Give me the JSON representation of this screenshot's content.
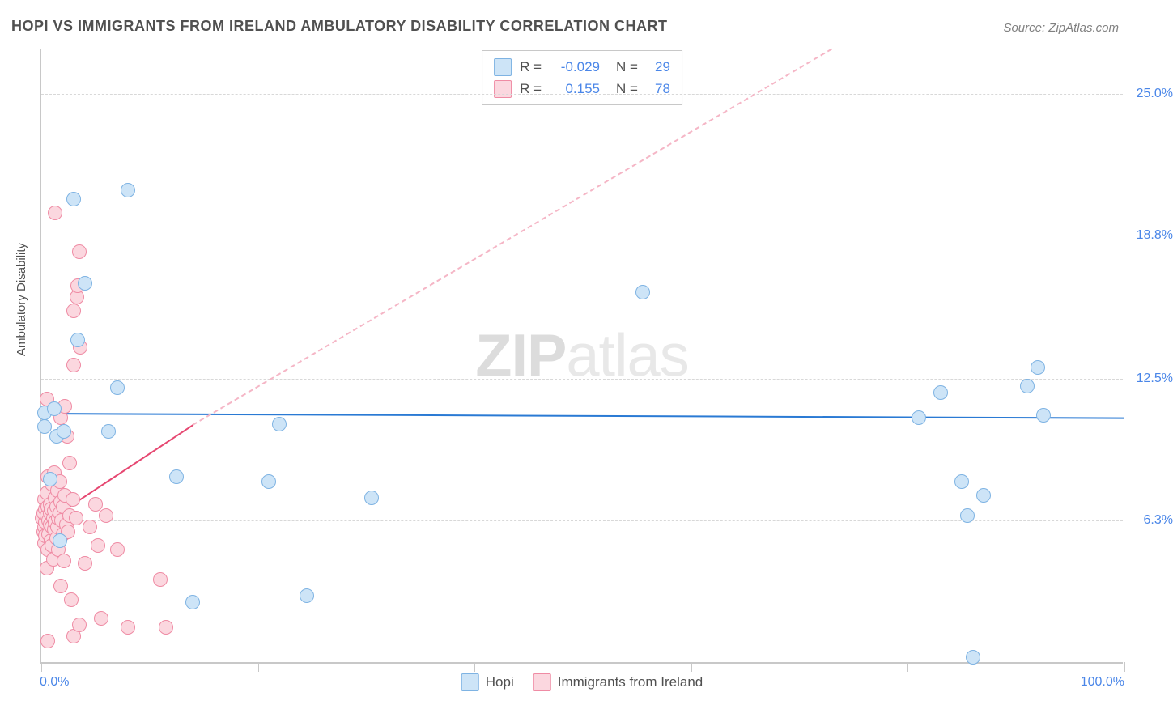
{
  "title": "HOPI VS IMMIGRANTS FROM IRELAND AMBULATORY DISABILITY CORRELATION CHART",
  "source": "Source: ZipAtlas.com",
  "y_axis_title": "Ambulatory Disability",
  "watermark_bold": "ZIP",
  "watermark_light": "atlas",
  "chart": {
    "type": "scatter",
    "xlim": [
      0,
      100
    ],
    "ylim": [
      0,
      27
    ],
    "x_tick_positions": [
      0,
      20,
      40,
      60,
      80,
      100
    ],
    "x_label_min": "0.0%",
    "x_label_max": "100.0%",
    "y_gridlines": [
      {
        "value": 6.3,
        "label": "6.3%"
      },
      {
        "value": 12.5,
        "label": "12.5%"
      },
      {
        "value": 18.8,
        "label": "18.8%"
      },
      {
        "value": 25.0,
        "label": "25.0%"
      }
    ],
    "background_color": "#ffffff",
    "grid_color": "#d8d8d8",
    "axis_color": "#c8c8c8",
    "marker_radius": 9,
    "series": [
      {
        "name": "Hopi",
        "fill": "#cde4f7",
        "stroke": "#7eb3e3",
        "r_value": "-0.029",
        "n_value": "29",
        "trend": {
          "x1": 0,
          "y1": 11.0,
          "x2": 100,
          "y2": 10.8,
          "solid_color": "#2a7ad4"
        },
        "points": [
          [
            0.3,
            10.4
          ],
          [
            0.3,
            11.0
          ],
          [
            0.8,
            8.1
          ],
          [
            1.2,
            11.2
          ],
          [
            1.4,
            10.0
          ],
          [
            1.7,
            5.4
          ],
          [
            2.1,
            10.2
          ],
          [
            3.0,
            20.4
          ],
          [
            3.4,
            14.2
          ],
          [
            4.0,
            16.7
          ],
          [
            6.2,
            10.2
          ],
          [
            7.0,
            12.1
          ],
          [
            8.0,
            20.8
          ],
          [
            12.5,
            8.2
          ],
          [
            14.0,
            2.7
          ],
          [
            21.0,
            8.0
          ],
          [
            22.0,
            10.5
          ],
          [
            24.5,
            3.0
          ],
          [
            30.5,
            7.3
          ],
          [
            55.5,
            16.3
          ],
          [
            81.0,
            10.8
          ],
          [
            83.0,
            11.9
          ],
          [
            85.0,
            8.0
          ],
          [
            85.5,
            6.5
          ],
          [
            87.0,
            7.4
          ],
          [
            91.0,
            12.2
          ],
          [
            92.0,
            13.0
          ],
          [
            92.5,
            10.9
          ],
          [
            86.0,
            0.3
          ]
        ]
      },
      {
        "name": "Immigrants from Ireland",
        "fill": "#fbd7df",
        "stroke": "#ef8ba4",
        "r_value": "0.155",
        "n_value": "78",
        "trend": {
          "solid": {
            "x1": 0,
            "y1": 6.1,
            "x2": 14,
            "y2": 10.5,
            "color": "#e64771"
          },
          "dash": {
            "x1": 14,
            "y1": 10.5,
            "x2": 73,
            "y2": 27,
            "color": "#f5b6c6"
          }
        },
        "points": [
          [
            0.1,
            6.4
          ],
          [
            0.2,
            5.8
          ],
          [
            0.2,
            6.6
          ],
          [
            0.3,
            6.0
          ],
          [
            0.3,
            5.3
          ],
          [
            0.3,
            7.2
          ],
          [
            0.4,
            6.8
          ],
          [
            0.4,
            5.6
          ],
          [
            0.4,
            6.2
          ],
          [
            0.5,
            4.2
          ],
          [
            0.5,
            7.5
          ],
          [
            0.5,
            6.5
          ],
          [
            0.6,
            5.0
          ],
          [
            0.6,
            6.9
          ],
          [
            0.6,
            8.2
          ],
          [
            0.7,
            6.3
          ],
          [
            0.7,
            5.7
          ],
          [
            0.8,
            6.1
          ],
          [
            0.8,
            7.0
          ],
          [
            0.8,
            6.6
          ],
          [
            0.9,
            5.4
          ],
          [
            0.9,
            6.8
          ],
          [
            1.0,
            6.0
          ],
          [
            1.0,
            7.9
          ],
          [
            1.0,
            5.2
          ],
          [
            1.1,
            6.4
          ],
          [
            1.1,
            4.6
          ],
          [
            1.2,
            6.7
          ],
          [
            1.2,
            5.9
          ],
          [
            1.2,
            8.4
          ],
          [
            1.3,
            6.2
          ],
          [
            1.3,
            7.3
          ],
          [
            1.4,
            5.5
          ],
          [
            1.4,
            6.9
          ],
          [
            1.5,
            6.0
          ],
          [
            1.5,
            7.6
          ],
          [
            1.6,
            6.4
          ],
          [
            1.6,
            5.0
          ],
          [
            1.7,
            8.0
          ],
          [
            1.7,
            6.6
          ],
          [
            1.8,
            3.4
          ],
          [
            1.8,
            7.1
          ],
          [
            1.8,
            10.8
          ],
          [
            1.9,
            6.3
          ],
          [
            2.0,
            5.7
          ],
          [
            2.0,
            6.9
          ],
          [
            2.1,
            4.5
          ],
          [
            2.2,
            7.4
          ],
          [
            2.2,
            11.3
          ],
          [
            2.3,
            6.1
          ],
          [
            2.4,
            10.0
          ],
          [
            2.5,
            5.8
          ],
          [
            2.6,
            8.8
          ],
          [
            2.6,
            6.5
          ],
          [
            2.8,
            2.8
          ],
          [
            2.9,
            7.2
          ],
          [
            3.0,
            13.1
          ],
          [
            3.0,
            15.5
          ],
          [
            3.2,
            6.4
          ],
          [
            3.3,
            16.1
          ],
          [
            3.4,
            16.6
          ],
          [
            3.5,
            18.1
          ],
          [
            3.6,
            13.9
          ],
          [
            1.3,
            19.8
          ],
          [
            3.0,
            1.2
          ],
          [
            3.5,
            1.7
          ],
          [
            4.0,
            4.4
          ],
          [
            4.5,
            6.0
          ],
          [
            5.0,
            7.0
          ],
          [
            5.2,
            5.2
          ],
          [
            5.5,
            2.0
          ],
          [
            6.0,
            6.5
          ],
          [
            7.0,
            5.0
          ],
          [
            8.0,
            1.6
          ],
          [
            11.0,
            3.7
          ],
          [
            11.5,
            1.6
          ],
          [
            0.6,
            1.0
          ],
          [
            0.5,
            11.6
          ]
        ]
      }
    ]
  },
  "legend_top": {
    "r_label": "R =",
    "n_label": "N ="
  },
  "legend_bottom": {
    "series1": "Hopi",
    "series2": "Immigrants from Ireland"
  }
}
